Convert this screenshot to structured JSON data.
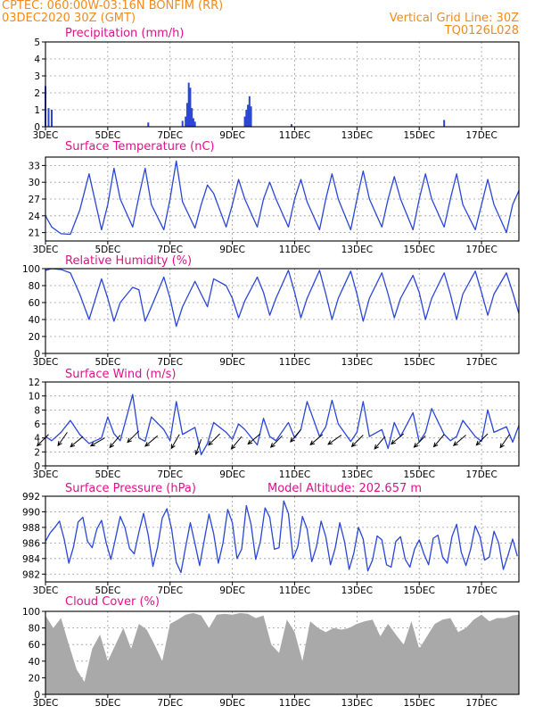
{
  "header": {
    "line1": "CPTEC:   060:00W-03:16N  BONFIM (RR)",
    "line2": "03DEC2020 30Z (GMT)",
    "grid_note": "Vertical Grid Line: 30Z",
    "code": "TQ0126L028"
  },
  "colors": {
    "header": "#f28a1c",
    "title": "#e0118a",
    "series": "#2a45d8",
    "cloud": "#a9a9a9",
    "wind_arrow": "#000000",
    "grid": "#9a9a9a"
  },
  "x_tick_labels": [
    "3DEC",
    "5DEC",
    "7DEC",
    "9DEC",
    "11DEC",
    "13DEC",
    "15DEC",
    "17DEC"
  ],
  "x_range_days": [
    3,
    18.2
  ],
  "chart_data": [
    {
      "id": "precip",
      "type": "bar",
      "title": "Precipitation (mm/h)",
      "ylim": [
        0,
        5
      ],
      "yticks": [
        "0",
        "1",
        "2",
        "3",
        "4",
        "5"
      ],
      "x": [
        3.0,
        3.1,
        3.2,
        6.3,
        7.4,
        7.5,
        7.55,
        7.6,
        7.65,
        7.7,
        7.75,
        7.8,
        9.4,
        9.45,
        9.5,
        9.55,
        9.6,
        10.9,
        15.8
      ],
      "values": [
        2.4,
        1.1,
        1.0,
        0.25,
        0.35,
        0.6,
        1.4,
        2.6,
        2.3,
        1.1,
        0.5,
        0.3,
        0.6,
        1.0,
        1.3,
        1.8,
        1.2,
        0.15,
        0.4
      ],
      "grid": true
    },
    {
      "id": "temp",
      "type": "line",
      "title": "Surface Temperature (nC)",
      "ylim": [
        19.5,
        34.5
      ],
      "yticks": [
        "21",
        "24",
        "27",
        "30",
        "33"
      ],
      "x": [
        3.0,
        3.2,
        3.5,
        3.8,
        4.1,
        4.4,
        4.8,
        5.0,
        5.2,
        5.4,
        5.8,
        6.0,
        6.2,
        6.4,
        6.8,
        7.0,
        7.2,
        7.4,
        7.8,
        8.0,
        8.2,
        8.4,
        8.8,
        9.0,
        9.2,
        9.4,
        9.8,
        10.0,
        10.2,
        10.4,
        10.8,
        11.0,
        11.2,
        11.4,
        11.8,
        12.0,
        12.2,
        12.4,
        12.8,
        13.0,
        13.2,
        13.4,
        13.8,
        14.0,
        14.2,
        14.4,
        14.8,
        15.0,
        15.2,
        15.4,
        15.8,
        16.0,
        16.2,
        16.4,
        16.8,
        17.0,
        17.2,
        17.4,
        17.8,
        18.0,
        18.2
      ],
      "values": [
        24.0,
        22.0,
        20.8,
        20.7,
        25.0,
        31.5,
        21.5,
        26.0,
        32.5,
        27.0,
        22.0,
        27.5,
        32.5,
        26.0,
        21.5,
        27.0,
        33.8,
        26.5,
        21.8,
        26.0,
        29.5,
        28.0,
        22.0,
        26.0,
        30.5,
        27.0,
        22.0,
        27.0,
        30.0,
        27.0,
        22.0,
        27.0,
        30.5,
        26.5,
        21.5,
        27.0,
        31.5,
        27.0,
        21.5,
        27.0,
        32.0,
        27.0,
        22.0,
        27.0,
        31.0,
        27.0,
        21.5,
        27.0,
        31.5,
        27.0,
        22.0,
        27.0,
        31.5,
        26.0,
        21.5,
        26.0,
        30.5,
        26.0,
        21.0,
        26.0,
        28.5
      ],
      "grid": true
    },
    {
      "id": "rh",
      "type": "line",
      "title": "Relative Humidity (%)",
      "ylim": [
        0,
        100
      ],
      "yticks": [
        "0",
        "20",
        "40",
        "60",
        "80",
        "100"
      ],
      "x": [
        3.0,
        3.2,
        3.5,
        3.8,
        4.1,
        4.4,
        4.8,
        5.0,
        5.2,
        5.4,
        5.8,
        6.0,
        6.2,
        6.4,
        6.8,
        7.0,
        7.2,
        7.4,
        7.8,
        8.0,
        8.2,
        8.4,
        8.8,
        9.0,
        9.2,
        9.4,
        9.8,
        10.0,
        10.2,
        10.4,
        10.8,
        11.0,
        11.2,
        11.4,
        11.8,
        12.0,
        12.2,
        12.4,
        12.8,
        13.0,
        13.2,
        13.4,
        13.8,
        14.0,
        14.2,
        14.4,
        14.8,
        15.0,
        15.2,
        15.4,
        15.8,
        16.0,
        16.2,
        16.4,
        16.8,
        17.0,
        17.2,
        17.4,
        17.8,
        18.0,
        18.2
      ],
      "values": [
        98,
        100,
        99,
        95,
        70,
        40,
        88,
        65,
        38,
        60,
        78,
        75,
        38,
        55,
        90,
        65,
        32,
        55,
        85,
        70,
        55,
        88,
        80,
        65,
        42,
        62,
        90,
        72,
        45,
        65,
        98,
        72,
        42,
        65,
        98,
        70,
        40,
        65,
        97,
        70,
        38,
        65,
        95,
        70,
        42,
        65,
        92,
        72,
        40,
        65,
        95,
        70,
        40,
        70,
        97,
        72,
        45,
        70,
        95,
        72,
        47
      ],
      "grid": true
    },
    {
      "id": "wind",
      "type": "line",
      "title": "Surface Wind (m/s)",
      "ylim": [
        0,
        12
      ],
      "yticks": [
        "0",
        "2",
        "4",
        "6",
        "8",
        "10",
        "12"
      ],
      "x": [
        3.0,
        3.2,
        3.5,
        3.8,
        4.1,
        4.4,
        4.8,
        5.0,
        5.2,
        5.4,
        5.8,
        6.0,
        6.2,
        6.4,
        6.8,
        7.0,
        7.2,
        7.4,
        7.8,
        8.0,
        8.2,
        8.4,
        8.8,
        9.0,
        9.2,
        9.4,
        9.8,
        10.0,
        10.2,
        10.4,
        10.8,
        11.0,
        11.2,
        11.4,
        11.8,
        12.0,
        12.2,
        12.4,
        12.8,
        13.0,
        13.2,
        13.4,
        13.8,
        14.0,
        14.2,
        14.4,
        14.8,
        15.0,
        15.2,
        15.4,
        15.8,
        16.0,
        16.2,
        16.4,
        16.8,
        17.0,
        17.2,
        17.4,
        17.8,
        18.0,
        18.2
      ],
      "values": [
        4.2,
        3.6,
        4.8,
        6.5,
        4.5,
        3.2,
        4.0,
        7.0,
        4.6,
        3.6,
        10.2,
        4.0,
        3.5,
        7.0,
        5.2,
        3.6,
        9.2,
        4.5,
        5.5,
        1.6,
        3.2,
        6.2,
        4.8,
        3.8,
        6.0,
        5.2,
        3.0,
        6.8,
        4.2,
        3.6,
        6.2,
        4.0,
        5.2,
        9.2,
        4.2,
        5.6,
        9.4,
        6.0,
        3.5,
        4.8,
        9.2,
        4.2,
        5.2,
        2.5,
        6.2,
        4.2,
        7.6,
        3.4,
        4.8,
        8.2,
        4.5,
        3.6,
        4.2,
        6.5,
        4.2,
        3.5,
        8.0,
        4.8,
        5.6,
        3.4,
        5.8
      ],
      "arrows": [
        {
          "day": 3.1,
          "speed": 4.5,
          "dir": 225
        },
        {
          "day": 3.7,
          "speed": 4.8,
          "dir": 215
        },
        {
          "day": 4.2,
          "speed": 4.2,
          "dir": 230
        },
        {
          "day": 4.9,
          "speed": 4.0,
          "dir": 240
        },
        {
          "day": 5.4,
          "speed": 4.4,
          "dir": 220
        },
        {
          "day": 6.0,
          "speed": 5.0,
          "dir": 225
        },
        {
          "day": 6.6,
          "speed": 4.3,
          "dir": 230
        },
        {
          "day": 7.3,
          "speed": 4.5,
          "dir": 210
        },
        {
          "day": 8.0,
          "speed": 3.8,
          "dir": 200
        },
        {
          "day": 8.6,
          "speed": 4.6,
          "dir": 225
        },
        {
          "day": 9.3,
          "speed": 4.2,
          "dir": 220
        },
        {
          "day": 9.9,
          "speed": 4.6,
          "dir": 230
        },
        {
          "day": 10.6,
          "speed": 4.3,
          "dir": 225
        },
        {
          "day": 11.2,
          "speed": 5.2,
          "dir": 220
        },
        {
          "day": 11.9,
          "speed": 4.5,
          "dir": 230
        },
        {
          "day": 12.5,
          "speed": 4.4,
          "dir": 235
        },
        {
          "day": 13.2,
          "speed": 4.4,
          "dir": 225
        },
        {
          "day": 13.9,
          "speed": 4.2,
          "dir": 220
        },
        {
          "day": 14.5,
          "speed": 4.6,
          "dir": 230
        },
        {
          "day": 15.2,
          "speed": 4.3,
          "dir": 225
        },
        {
          "day": 15.8,
          "speed": 4.5,
          "dir": 220
        },
        {
          "day": 16.5,
          "speed": 4.4,
          "dir": 230
        },
        {
          "day": 17.2,
          "speed": 4.6,
          "dir": 225
        },
        {
          "day": 17.9,
          "speed": 4.5,
          "dir": 215
        }
      ],
      "grid": true
    },
    {
      "id": "pressure",
      "type": "line",
      "title": "Surface Pressure (hPa)",
      "annotation": "Model Altitude: 202.657 m",
      "ylim": [
        981,
        992
      ],
      "yticks": [
        "982",
        "984",
        "986",
        "988",
        "990",
        "992"
      ],
      "x": [
        3.0,
        3.15,
        3.3,
        3.45,
        3.6,
        3.75,
        3.9,
        4.05,
        4.2,
        4.35,
        4.5,
        4.65,
        4.8,
        4.95,
        5.1,
        5.25,
        5.4,
        5.55,
        5.7,
        5.85,
        6.0,
        6.15,
        6.3,
        6.45,
        6.6,
        6.75,
        6.9,
        7.05,
        7.2,
        7.35,
        7.5,
        7.65,
        7.8,
        7.95,
        8.1,
        8.25,
        8.4,
        8.55,
        8.7,
        8.85,
        9.0,
        9.15,
        9.3,
        9.45,
        9.6,
        9.75,
        9.9,
        10.05,
        10.2,
        10.35,
        10.5,
        10.65,
        10.8,
        10.95,
        11.1,
        11.25,
        11.4,
        11.55,
        11.7,
        11.85,
        12.0,
        12.15,
        12.3,
        12.45,
        12.6,
        12.75,
        12.9,
        13.05,
        13.2,
        13.35,
        13.5,
        13.65,
        13.8,
        13.95,
        14.1,
        14.25,
        14.4,
        14.55,
        14.7,
        14.85,
        15.0,
        15.15,
        15.3,
        15.45,
        15.6,
        15.75,
        15.9,
        16.05,
        16.2,
        16.35,
        16.5,
        16.65,
        16.8,
        16.95,
        17.1,
        17.25,
        17.4,
        17.55,
        17.7,
        17.85,
        18.0,
        18.15
      ],
      "values": [
        986.2,
        987.3,
        988.0,
        988.8,
        986.5,
        983.4,
        985.5,
        988.7,
        989.3,
        986.2,
        985.4,
        987.8,
        988.9,
        986.0,
        983.9,
        986.6,
        989.4,
        988.0,
        985.3,
        984.6,
        987.4,
        989.8,
        987.0,
        983.0,
        985.5,
        989.2,
        990.4,
        987.8,
        983.5,
        982.2,
        985.5,
        988.6,
        985.9,
        983.1,
        986.4,
        989.7,
        987.2,
        983.4,
        986.0,
        990.3,
        988.6,
        984.0,
        985.2,
        990.8,
        988.4,
        983.9,
        986.2,
        990.5,
        989.3,
        985.2,
        985.4,
        991.4,
        989.8,
        984.0,
        985.5,
        989.4,
        987.8,
        983.6,
        985.5,
        988.8,
        986.8,
        983.2,
        985.3,
        988.6,
        986.2,
        982.6,
        984.7,
        988.0,
        986.5,
        982.4,
        983.8,
        986.9,
        986.4,
        983.2,
        982.9,
        986.2,
        986.8,
        983.9,
        982.9,
        985.2,
        986.4,
        984.6,
        983.2,
        986.6,
        987.0,
        984.2,
        983.4,
        986.8,
        988.4,
        984.8,
        983.1,
        985.2,
        988.2,
        986.8,
        983.8,
        984.2,
        987.5,
        986.0,
        982.6,
        984.4,
        986.5,
        984.3
      ],
      "grid": true
    },
    {
      "id": "cloud",
      "type": "area",
      "title": "Cloud Cover (%)",
      "ylim": [
        0,
        100
      ],
      "yticks": [
        "0",
        "20",
        "40",
        "60",
        "80",
        "100"
      ],
      "x": [
        3.0,
        3.25,
        3.5,
        3.75,
        4.0,
        4.25,
        4.5,
        4.75,
        5.0,
        5.25,
        5.5,
        5.75,
        6.0,
        6.25,
        6.5,
        6.75,
        7.0,
        7.25,
        7.5,
        7.75,
        8.0,
        8.25,
        8.5,
        8.75,
        9.0,
        9.25,
        9.5,
        9.75,
        10.0,
        10.25,
        10.5,
        10.75,
        11.0,
        11.25,
        11.5,
        11.75,
        12.0,
        12.25,
        12.5,
        12.75,
        13.0,
        13.25,
        13.5,
        13.75,
        14.0,
        14.25,
        14.5,
        14.75,
        15.0,
        15.25,
        15.5,
        15.75,
        16.0,
        16.25,
        16.5,
        16.75,
        17.0,
        17.25,
        17.5,
        17.75,
        18.0,
        18.2
      ],
      "values": [
        95,
        80,
        92,
        60,
        30,
        15,
        55,
        72,
        40,
        60,
        80,
        55,
        85,
        78,
        60,
        40,
        85,
        90,
        96,
        98,
        95,
        80,
        96,
        97,
        96,
        98,
        97,
        92,
        95,
        60,
        50,
        90,
        75,
        40,
        88,
        80,
        75,
        80,
        78,
        80,
        85,
        88,
        90,
        70,
        85,
        72,
        60,
        88,
        55,
        70,
        85,
        90,
        92,
        75,
        80,
        90,
        96,
        88,
        92,
        92,
        95,
        96
      ],
      "grid": true
    }
  ]
}
